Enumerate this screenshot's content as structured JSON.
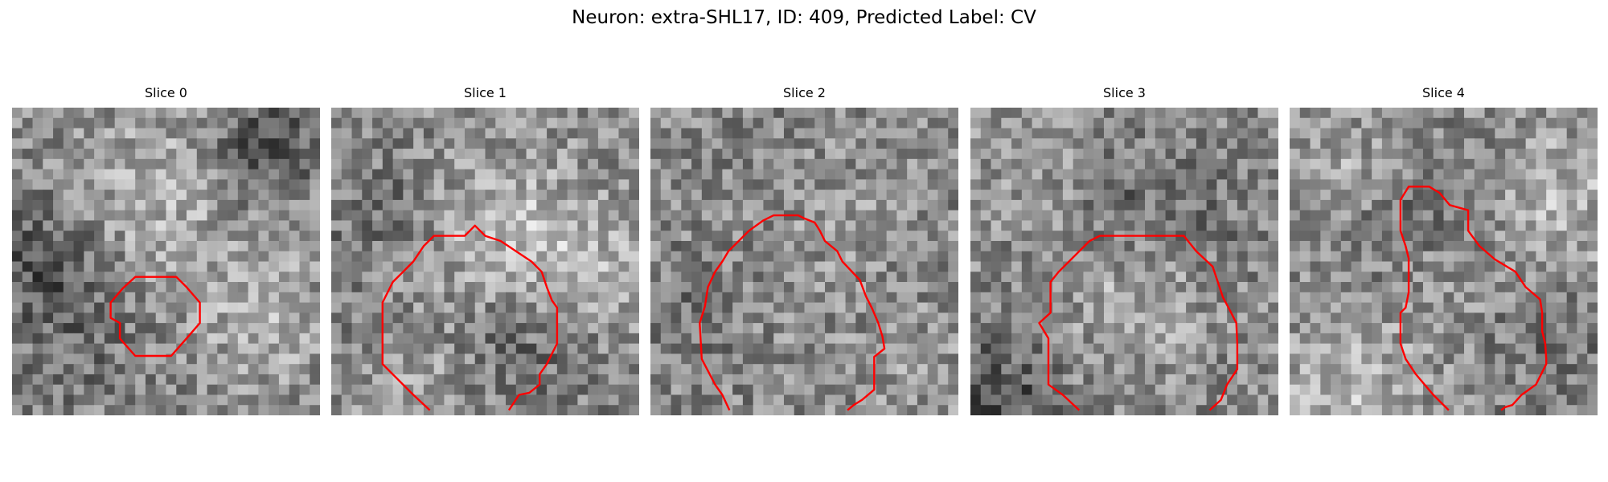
{
  "figure": {
    "title": "Neuron: extra-SHL17, ID: 409, Predicted Label: CV",
    "contour_color": "#ff0000",
    "colormap": "gray"
  },
  "slices": [
    {
      "label": "Slice 0"
    },
    {
      "label": "Slice 1"
    },
    {
      "label": "Slice 2"
    },
    {
      "label": "Slice 3"
    },
    {
      "label": "Slice 4"
    }
  ]
}
